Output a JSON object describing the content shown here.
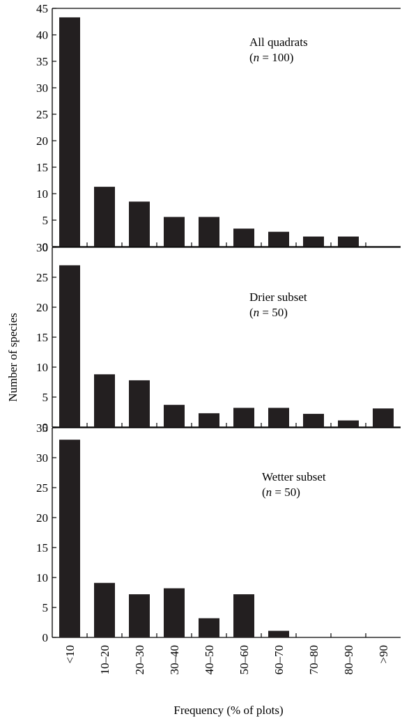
{
  "chart_data": {
    "type": "bar",
    "ylabel": "Number of species",
    "xlabel": "Frequency (% of plots)",
    "categories": [
      "<10",
      "10–20",
      "20–30",
      "30–40",
      "40–50",
      "50–60",
      "60–70",
      "70–80",
      "80–90",
      ">90"
    ],
    "bar_color": "#231f20",
    "grid": false,
    "panels": [
      {
        "annotation": {
          "line1": "All quadrats",
          "line2_n": "n",
          "line2_rest": " = 100)"
        },
        "ylim": [
          0,
          45
        ],
        "yticks": [
          0,
          5,
          10,
          15,
          20,
          25,
          30,
          35,
          40,
          45
        ],
        "values": [
          43.3,
          11.3,
          8.5,
          5.6,
          5.6,
          3.4,
          2.8,
          1.9,
          1.9,
          0
        ]
      },
      {
        "annotation": {
          "line1": "Drier subset",
          "line2_n": "n",
          "line2_rest": " = 50)"
        },
        "ylim": [
          0,
          30
        ],
        "yticks": [
          0,
          5,
          10,
          15,
          20,
          25,
          30
        ],
        "values": [
          27,
          8.8,
          7.8,
          3.7,
          2.3,
          3.2,
          3.2,
          2.2,
          1.1,
          3.1
        ]
      },
      {
        "annotation": {
          "line1": "Wetter subset",
          "line2_n": "n",
          "line2_rest": " = 50)"
        },
        "ylim": [
          0,
          35
        ],
        "yticks": [
          0,
          5,
          10,
          15,
          20,
          25,
          30,
          35
        ],
        "values": [
          33,
          9.1,
          7.2,
          8.2,
          3.2,
          7.2,
          1.1,
          0,
          0,
          0
        ]
      }
    ]
  }
}
